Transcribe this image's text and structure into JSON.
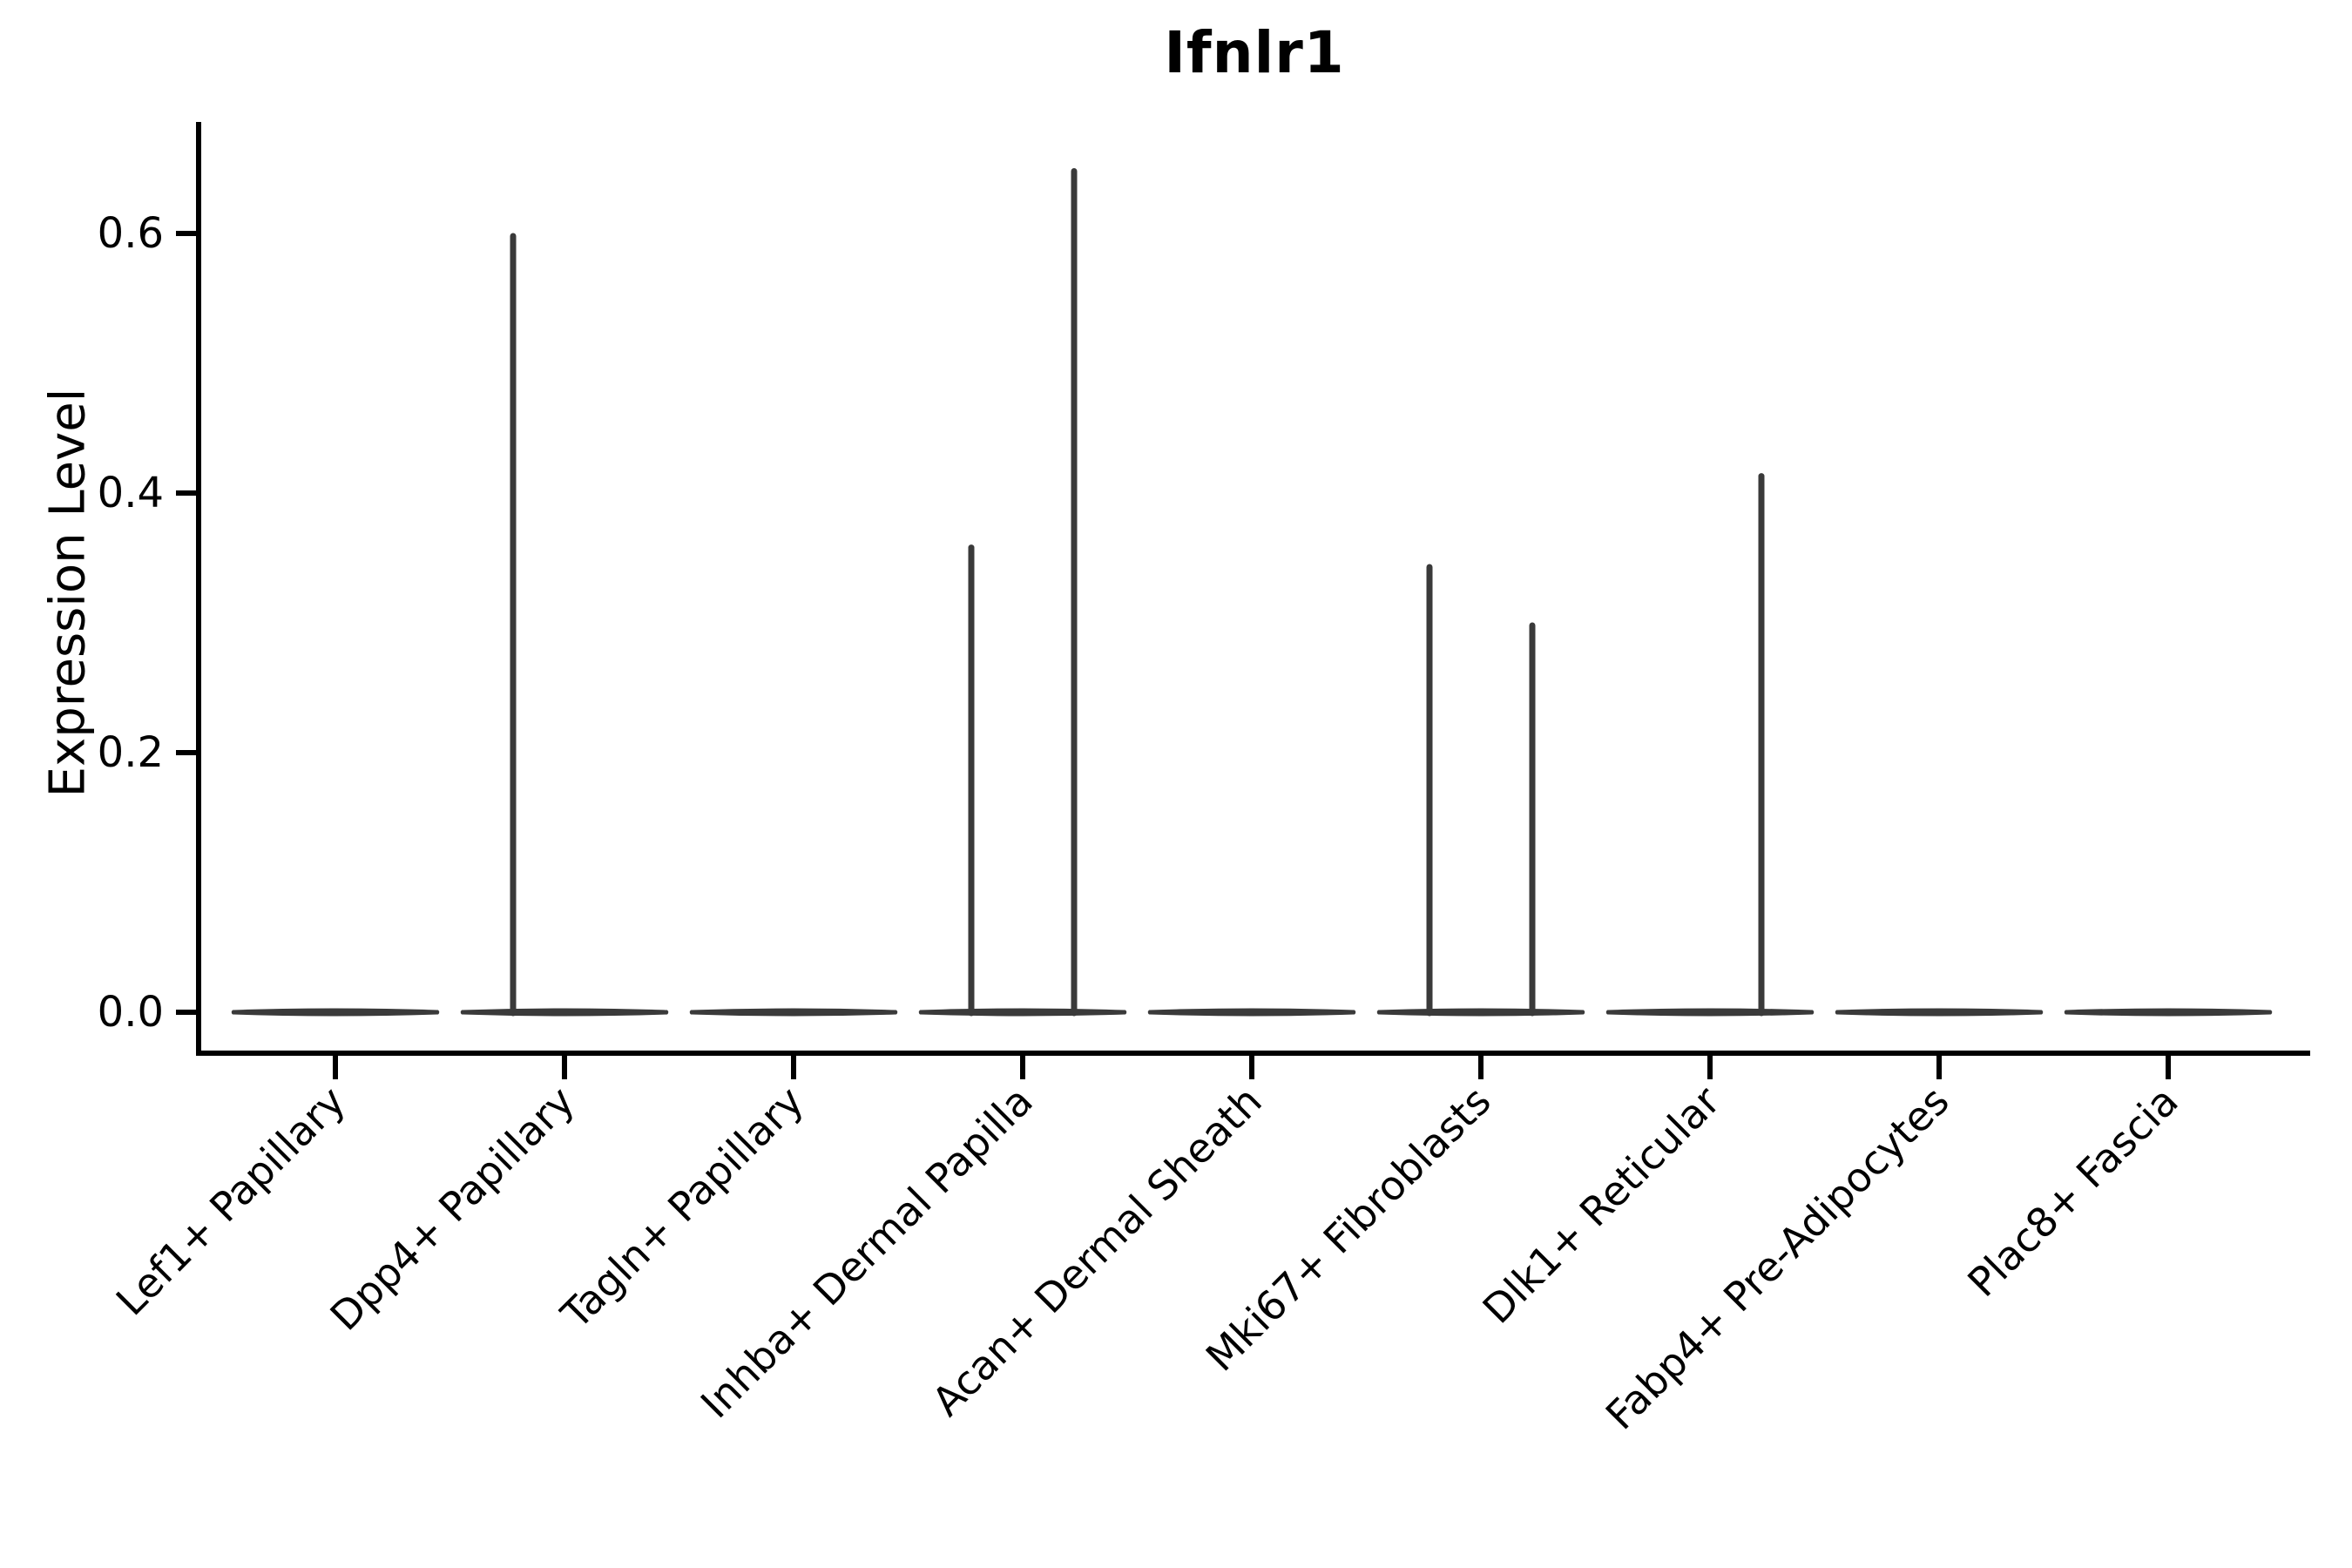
{
  "title": "Ifnlr1",
  "ylabel": "Expression Level",
  "chart_data": {
    "type": "violin",
    "title": "Ifnlr1",
    "ylabel": "Expression Level",
    "xlabel": "",
    "yticks": [
      "0.0",
      "0.2",
      "0.4",
      "0.6"
    ],
    "ytick_values": [
      0.0,
      0.2,
      0.4,
      0.6
    ],
    "ylim": [
      0.0,
      0.68
    ],
    "grid": false,
    "legend": "none",
    "categories": [
      "Lef1+ Papillary",
      "Dpp4+ Papillary",
      "Tagln+ Papillary",
      "Inhba+ Dermal Papilla",
      "Acan+ Dermal Sheath",
      "Mki67+ Fibroblasts",
      "Dlk1+ Reticular",
      "Fabp4+ Pre-Adipocytes",
      "Plac8+ Fascia"
    ],
    "violins": [
      {
        "category": "Lef1+ Papillary",
        "bulk_value": 0.0,
        "spikes": []
      },
      {
        "category": "Dpp4+ Papillary",
        "bulk_value": 0.0,
        "spikes": [
          {
            "side": "left",
            "max": 0.6
          }
        ]
      },
      {
        "category": "Tagln+ Papillary",
        "bulk_value": 0.0,
        "spikes": []
      },
      {
        "category": "Inhba+ Dermal Papilla",
        "bulk_value": 0.0,
        "spikes": [
          {
            "side": "left",
            "max": 0.36
          },
          {
            "side": "right",
            "max": 0.65
          }
        ]
      },
      {
        "category": "Acan+ Dermal Sheath",
        "bulk_value": 0.0,
        "spikes": []
      },
      {
        "category": "Mki67+ Fibroblasts",
        "bulk_value": 0.0,
        "spikes": [
          {
            "side": "left",
            "max": 0.345
          },
          {
            "side": "right",
            "max": 0.3
          }
        ]
      },
      {
        "category": "Dlk1+ Reticular",
        "bulk_value": 0.0,
        "spikes": [
          {
            "side": "right",
            "max": 0.415
          }
        ]
      },
      {
        "category": "Fabp4+ Pre-Adipocytes",
        "bulk_value": 0.0,
        "spikes": []
      },
      {
        "category": "Plac8+ Fascia",
        "bulk_value": 0.0,
        "spikes": []
      }
    ],
    "colors": {
      "spine": "#000000",
      "violin_stroke": "#3a3a3a",
      "text": "#000000",
      "background": "#ffffff"
    }
  }
}
